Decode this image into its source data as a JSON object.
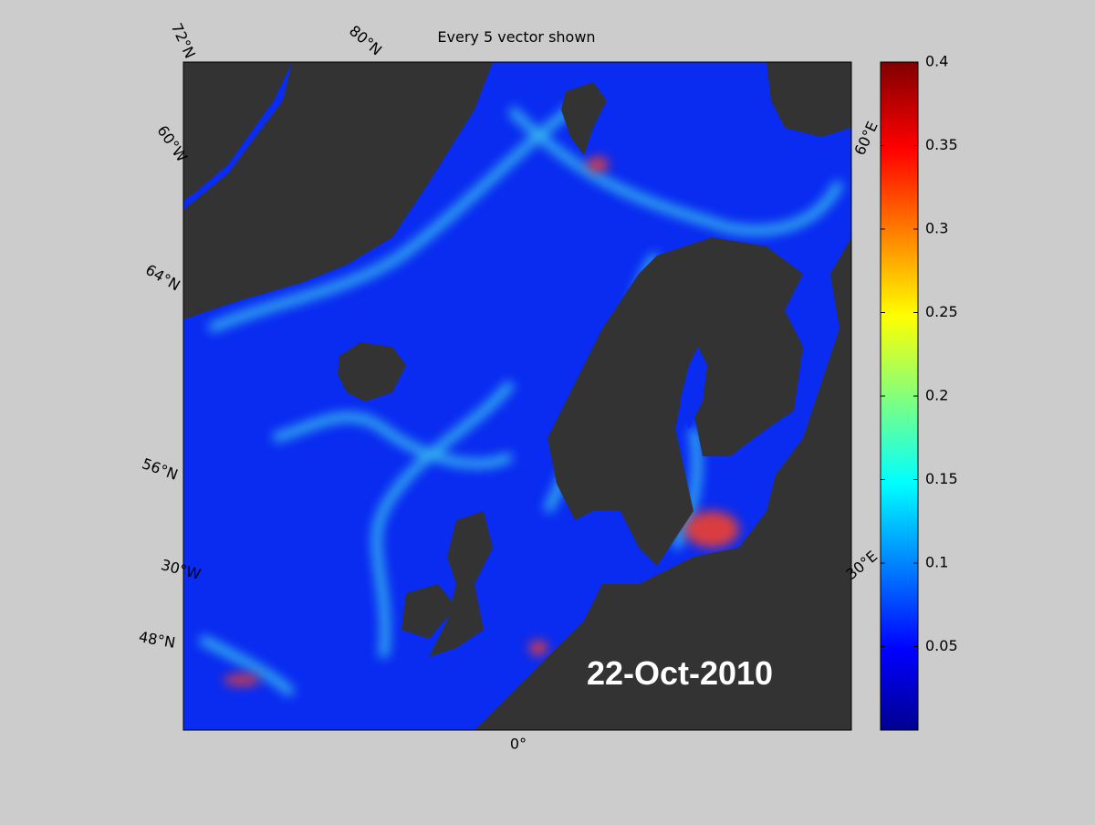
{
  "map": {
    "title": "Every 5 vector shown",
    "date_label": "22-Oct-2010",
    "grid_labels": [
      "72°N",
      "80°N",
      "60°W",
      "64°N",
      "56°N",
      "30°W",
      "48°N",
      "0°",
      "30°E",
      "60°E"
    ]
  },
  "colorbar": {
    "clim": [
      0,
      0.4
    ],
    "ticks": [
      0.05,
      0.1,
      0.15,
      0.2,
      0.25,
      0.3,
      0.35,
      0.4
    ]
  }
}
